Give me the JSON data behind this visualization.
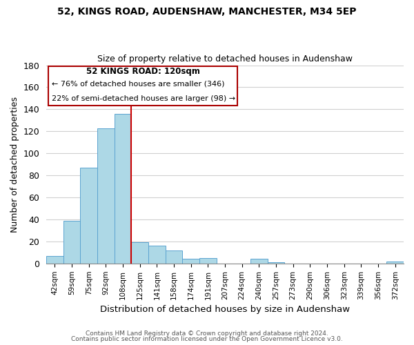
{
  "title1": "52, KINGS ROAD, AUDENSHAW, MANCHESTER, M34 5EP",
  "title2": "Size of property relative to detached houses in Audenshaw",
  "xlabel": "Distribution of detached houses by size in Audenshaw",
  "ylabel": "Number of detached properties",
  "bin_labels": [
    "42sqm",
    "59sqm",
    "75sqm",
    "92sqm",
    "108sqm",
    "125sqm",
    "141sqm",
    "158sqm",
    "174sqm",
    "191sqm",
    "207sqm",
    "224sqm",
    "240sqm",
    "257sqm",
    "273sqm",
    "290sqm",
    "306sqm",
    "323sqm",
    "339sqm",
    "356sqm",
    "372sqm"
  ],
  "bar_heights": [
    7,
    39,
    87,
    123,
    136,
    19,
    16,
    12,
    4,
    5,
    0,
    0,
    4,
    1,
    0,
    0,
    0,
    0,
    0,
    0,
    2
  ],
  "bar_color": "#add8e6",
  "bar_edge_color": "#5ba3d0",
  "highlight_line_color": "#cc0000",
  "ylim": [
    0,
    180
  ],
  "yticks": [
    0,
    20,
    40,
    60,
    80,
    100,
    120,
    140,
    160,
    180
  ],
  "annotation_title": "52 KINGS ROAD: 120sqm",
  "annotation_line1": "← 76% of detached houses are smaller (346)",
  "annotation_line2": "22% of semi-detached houses are larger (98) →",
  "footer1": "Contains HM Land Registry data © Crown copyright and database right 2024.",
  "footer2": "Contains public sector information licensed under the Open Government Licence v3.0.",
  "background_color": "#ffffff",
  "grid_color": "#d0d0d0"
}
